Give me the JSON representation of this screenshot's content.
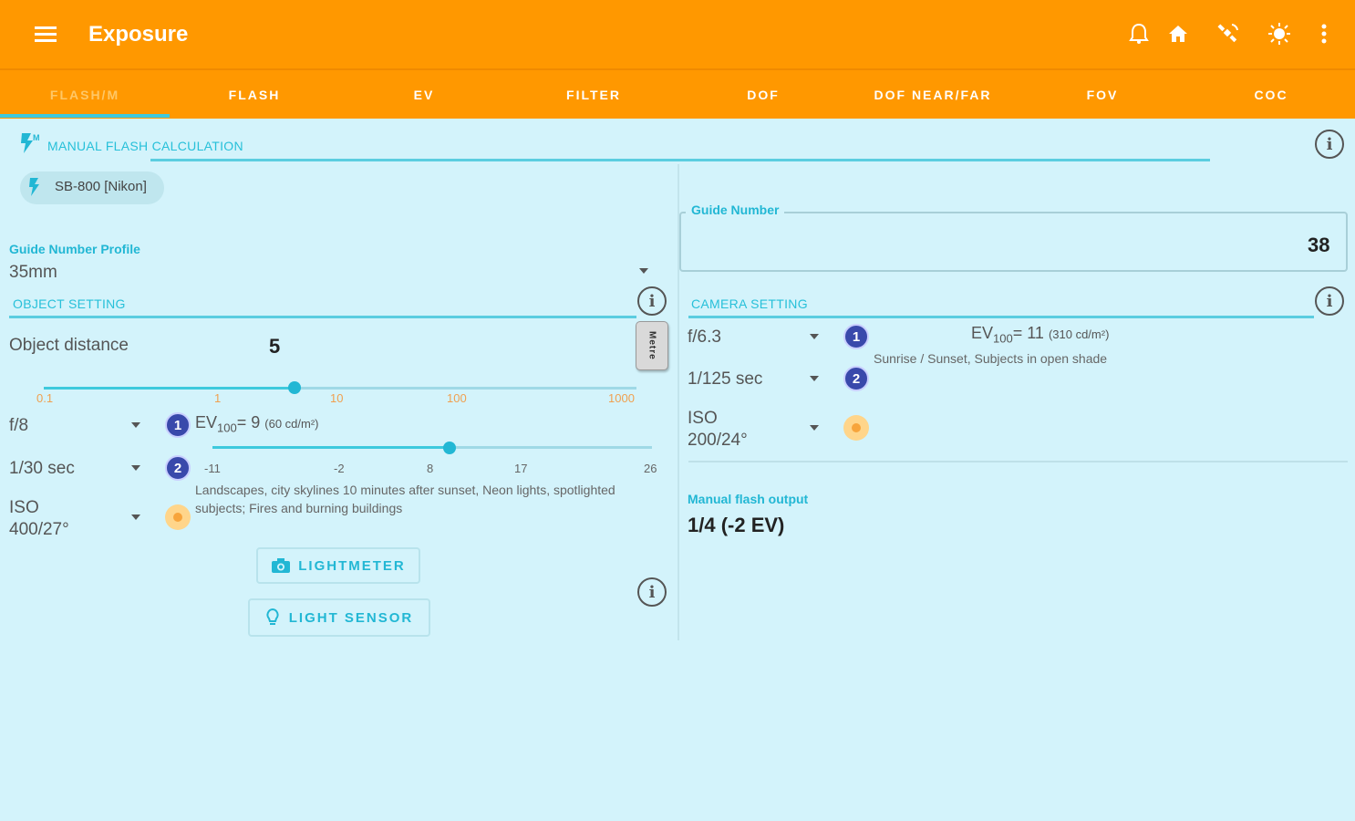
{
  "appbar": {
    "title": "Exposure",
    "icons": [
      "menu-icon",
      "bell-icon",
      "home-icon",
      "satellite-icon",
      "brightness-icon",
      "more-vert-icon"
    ]
  },
  "tabs": [
    {
      "label": "FLASH/M",
      "active": true
    },
    {
      "label": "FLASH",
      "active": false
    },
    {
      "label": "EV",
      "active": false
    },
    {
      "label": "FILTER",
      "active": false
    },
    {
      "label": "DOF",
      "active": false
    },
    {
      "label": "DOF NEAR/FAR",
      "active": false
    },
    {
      "label": "FOV",
      "active": false
    },
    {
      "label": "COC",
      "active": false
    }
  ],
  "manual_flash": {
    "section_title": "MANUAL FLASH CALCULATION",
    "flash_chip": "SB-800 [Nikon]"
  },
  "guide_profile": {
    "label": "Guide Number Profile",
    "value": "35mm"
  },
  "guide_number": {
    "label": "Guide Number",
    "value": "38"
  },
  "object_setting": {
    "section_title": "OBJECT SETTING",
    "distance_label": "Object distance",
    "distance_value": "5",
    "unit_toggle": "Metre",
    "distance_ticks": [
      "0.1",
      "1",
      "10",
      "100",
      "1000"
    ],
    "distance_slider_fraction": 0.5,
    "aperture": "f/8",
    "shutter": "1/30 sec",
    "iso": "ISO\n400/27°",
    "ev_prefix": "EV",
    "ev_sub": "100",
    "ev_value": "= 9",
    "ev_lum": "(60 cd/m²)",
    "ev_ticks": [
      "-11",
      "-2",
      "8",
      "17",
      "26"
    ],
    "ev_slider_fraction": 0.54,
    "ev_description": "Landscapes, city skylines 10 minutes after sunset, Neon lights, spotlighted subjects; Fires and burning buildings",
    "lightmeter_label": "LIGHTMETER",
    "light_sensor_label": "LIGHT SENSOR"
  },
  "camera_setting": {
    "section_title": "CAMERA SETTING",
    "aperture": "f/6.3",
    "shutter": "1/125 sec",
    "iso": "ISO\n200/24°",
    "ev_prefix": "EV",
    "ev_sub": "100",
    "ev_value": "= 11",
    "ev_lum": "(310 cd/m²)",
    "ev_description": "Sunrise / Sunset, Subjects in open shade"
  },
  "output": {
    "label": "Manual flash output",
    "value": "1/4 (-2 EV)"
  },
  "badges": {
    "one": "1",
    "two": "2"
  },
  "colors": {
    "accent": "#ff9800",
    "teal": "#22b7d4",
    "background": "#d3f3fb",
    "badge": "#3949ab"
  }
}
